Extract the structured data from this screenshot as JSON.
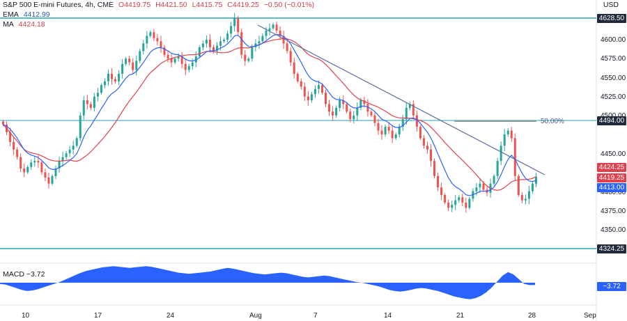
{
  "header": {
    "symbol": "S&P 500 E-mini Futures, 4h, CME",
    "open": "O4419.75",
    "high": "H4421.50",
    "low": "L4415.75",
    "close": "C4419.25",
    "change": "−0.50 (−0.01%)",
    "currency": "USD"
  },
  "indicators": {
    "ema_label": "EMA",
    "ema_value": "4412.99",
    "ma_label": "MA",
    "ma_value": "4424.18",
    "macd_label": "MACD",
    "macd_value": "−3.72"
  },
  "price_axis": {
    "ticks": [
      "4600.00",
      "4575.00",
      "4550.00",
      "4525.00",
      "4500.00",
      "4450.00",
      "4400.00",
      "4375.00",
      "4350.00"
    ],
    "levels": {
      "top_level": "4628.50",
      "mid_level": "4494.00",
      "ma_box": "4424.25",
      "last_box": "4419.25",
      "ema_box": "4413.00",
      "bottom_level": "4324.25",
      "macd_box": "−3.72"
    }
  },
  "annotations": {
    "fib_label": "50.00%"
  },
  "time_axis": {
    "labels": [
      "10",
      "17",
      "24",
      "Aug",
      "7",
      "14",
      "21",
      "28",
      "Sep"
    ]
  },
  "colors": {
    "up": "#26a69a",
    "down": "#ef5350",
    "ema": "#2962ff",
    "ma": "#e0414f",
    "level": "#26a2b3",
    "trendline": "#5b6e9a",
    "macd_fill": "#2962ff"
  },
  "chart_data": {
    "type": "candlestick",
    "timeframe": "4h",
    "ylim": [
      4315,
      4650
    ],
    "horizontal_levels": [
      4628.5,
      4494.0,
      4324.25
    ],
    "fib_level": {
      "label": "50.00%",
      "price": 4494.0
    },
    "trendline": {
      "from_price": 4620,
      "to_price": 4422
    },
    "closes": [
      4488,
      4478,
      4465,
      4455,
      4445,
      4430,
      4425,
      4432,
      4438,
      4440,
      4438,
      4425,
      4418,
      4410,
      4420,
      4430,
      4440,
      4445,
      4450,
      4455,
      4460,
      4470,
      4500,
      4520,
      4515,
      4510,
      4525,
      4530,
      4540,
      4545,
      4555,
      4548,
      4545,
      4555,
      4568,
      4575,
      4570,
      4560,
      4572,
      4585,
      4595,
      4605,
      4610,
      4602,
      4598,
      4590,
      4580,
      4575,
      4570,
      4575,
      4578,
      4568,
      4560,
      4565,
      4570,
      4578,
      4590,
      4595,
      4600,
      4590,
      4585,
      4592,
      4598,
      4600,
      4608,
      4618,
      4628,
      4610,
      4580,
      4572,
      4575,
      4590,
      4595,
      4598,
      4605,
      4612,
      4615,
      4620,
      4612,
      4605,
      4595,
      4585,
      4570,
      4555,
      4545,
      4538,
      4525,
      4520,
      4528,
      4535,
      4540,
      4530,
      4515,
      4505,
      4500,
      4510,
      4520,
      4515,
      4505,
      4495,
      4500,
      4510,
      4520,
      4515,
      4505,
      4500,
      4490,
      4480,
      4475,
      4485,
      4480,
      4470,
      4475,
      4485,
      4495,
      4510,
      4515,
      4500,
      4485,
      4470,
      4460,
      4455,
      4440,
      4420,
      4405,
      4395,
      4385,
      4378,
      4382,
      4388,
      4392,
      4385,
      4378,
      4390,
      4400,
      4405,
      4410,
      4402,
      4398,
      4410,
      4420,
      4440,
      4460,
      4475,
      4480,
      4470,
      4420,
      4395,
      4388,
      4390,
      4400,
      4410,
      4419.25
    ],
    "ema_value": 4412.99,
    "ma_value": 4424.18,
    "macd": {
      "value": -3.72,
      "values": [
        -2,
        -3,
        -6,
        -9,
        -12,
        -14,
        -13,
        -11,
        -8,
        -5,
        -2,
        1,
        5,
        9,
        13,
        17,
        20,
        22,
        24,
        26,
        27,
        28,
        27,
        26,
        25,
        26,
        27,
        28,
        27,
        25,
        23,
        21,
        19,
        17,
        16,
        15,
        16,
        17,
        18,
        19,
        21,
        23,
        25,
        24,
        22,
        20,
        18,
        16,
        15,
        14,
        15,
        16,
        17,
        16,
        14,
        12,
        10,
        9,
        10,
        11,
        12,
        11,
        9,
        7,
        5,
        3,
        1,
        0,
        -2,
        -4,
        -6,
        -9,
        -12,
        -14,
        -15,
        -14,
        -12,
        -10,
        -9,
        -10,
        -12,
        -14,
        -17,
        -20,
        -23,
        -25,
        -27,
        -28,
        -26,
        -22,
        -16,
        -8,
        2,
        12,
        18,
        14,
        6,
        -2,
        -4,
        -3.72
      ]
    }
  }
}
